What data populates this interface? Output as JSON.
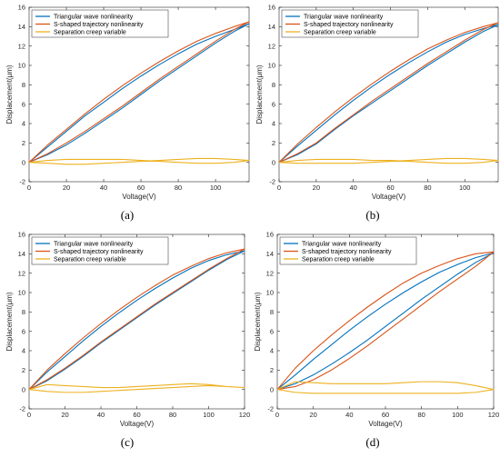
{
  "figure": {
    "panels": [
      "a",
      "b",
      "c",
      "d"
    ],
    "captions": [
      "(a)",
      "(b)",
      "(c)",
      "(d)"
    ]
  },
  "colors": {
    "triangular": "#0072BD",
    "s_shaped": "#D95319",
    "creep": "#EDB120",
    "axis": "#262626"
  },
  "chart_data": [
    {
      "type": "line",
      "caption": "(a)",
      "xlabel": "Voltage(V)",
      "ylabel": "Displacement(μm)",
      "xlim": [
        0,
        118
      ],
      "ylim": [
        -2,
        16
      ],
      "xticks": [
        0,
        20,
        40,
        60,
        80,
        100
      ],
      "yticks": [
        -2,
        0,
        2,
        4,
        6,
        8,
        10,
        12,
        14,
        16
      ],
      "legend_position": "top-left",
      "series": [
        {
          "name": "Triangular wave nonlinearity",
          "color": "#0072BD",
          "x": [
            0,
            10,
            20,
            30,
            40,
            50,
            60,
            70,
            80,
            90,
            100,
            110,
            118,
            110,
            100,
            90,
            80,
            70,
            60,
            50,
            40,
            30,
            20,
            10,
            0
          ],
          "y": [
            0,
            0.8,
            1.8,
            3.0,
            4.3,
            5.6,
            7.0,
            8.4,
            9.7,
            11.0,
            12.3,
            13.5,
            14.3,
            13.7,
            13.0,
            12.2,
            11.2,
            10.1,
            8.9,
            7.6,
            6.2,
            4.8,
            3.2,
            1.6,
            0
          ]
        },
        {
          "name": "S-shaped trajectory nonlinearity",
          "color": "#D95319",
          "x": [
            0,
            10,
            20,
            30,
            40,
            50,
            60,
            70,
            80,
            90,
            100,
            110,
            118,
            110,
            100,
            90,
            80,
            70,
            60,
            50,
            40,
            30,
            20,
            10,
            0
          ],
          "y": [
            0,
            0.9,
            2.0,
            3.2,
            4.5,
            5.8,
            7.2,
            8.6,
            9.9,
            11.2,
            12.5,
            13.7,
            14.5,
            14.0,
            13.3,
            12.5,
            11.5,
            10.4,
            9.2,
            7.9,
            6.5,
            5.0,
            3.4,
            1.8,
            0
          ]
        },
        {
          "name": "Separation creep variable",
          "color": "#EDB120",
          "x": [
            0,
            10,
            20,
            30,
            40,
            50,
            60,
            70,
            80,
            90,
            100,
            110,
            118,
            110,
            100,
            90,
            80,
            70,
            60,
            50,
            40,
            30,
            20,
            10,
            0
          ],
          "y": [
            0,
            -0.1,
            -0.2,
            -0.2,
            -0.1,
            0.0,
            0.1,
            0.2,
            0.3,
            0.4,
            0.4,
            0.3,
            0.2,
            0.0,
            -0.1,
            -0.1,
            0.0,
            0.1,
            0.2,
            0.3,
            0.3,
            0.3,
            0.3,
            0.2,
            0
          ]
        }
      ]
    },
    {
      "type": "line",
      "caption": "(b)",
      "xlabel": "Voltage(V)",
      "ylabel": "Displacement(μm)",
      "xlim": [
        0,
        118
      ],
      "ylim": [
        -2,
        16
      ],
      "xticks": [
        0,
        20,
        40,
        60,
        80,
        100
      ],
      "yticks": [
        -2,
        0,
        2,
        4,
        6,
        8,
        10,
        12,
        14,
        16
      ],
      "legend_position": "top-left",
      "series": [
        {
          "name": "Triangular wave nonlinearity",
          "color": "#0072BD",
          "x": [
            0,
            10,
            20,
            30,
            40,
            50,
            60,
            70,
            80,
            90,
            100,
            110,
            118,
            110,
            100,
            90,
            80,
            70,
            60,
            50,
            40,
            30,
            20,
            10,
            0
          ],
          "y": [
            0,
            0.8,
            1.9,
            3.4,
            4.8,
            6.1,
            7.4,
            8.7,
            10.0,
            11.2,
            12.4,
            13.5,
            14.2,
            13.8,
            13.2,
            12.4,
            11.4,
            10.3,
            9.1,
            7.8,
            6.4,
            4.9,
            3.3,
            1.7,
            0
          ]
        },
        {
          "name": "S-shaped trajectory nonlinearity",
          "color": "#D95319",
          "x": [
            0,
            10,
            20,
            30,
            40,
            50,
            60,
            70,
            80,
            90,
            100,
            110,
            118,
            110,
            100,
            90,
            80,
            70,
            60,
            50,
            40,
            30,
            20,
            10,
            0
          ],
          "y": [
            0,
            0.9,
            2.0,
            3.5,
            4.9,
            6.3,
            7.6,
            8.9,
            10.2,
            11.4,
            12.6,
            13.7,
            14.4,
            14.0,
            13.4,
            12.6,
            11.7,
            10.6,
            9.4,
            8.1,
            6.7,
            5.2,
            3.6,
            1.9,
            0
          ]
        },
        {
          "name": "Separation creep variable",
          "color": "#EDB120",
          "x": [
            0,
            10,
            20,
            30,
            40,
            50,
            60,
            70,
            80,
            90,
            100,
            110,
            118,
            110,
            100,
            90,
            80,
            70,
            60,
            50,
            40,
            30,
            20,
            10,
            0
          ],
          "y": [
            0,
            -0.1,
            -0.1,
            -0.1,
            -0.1,
            0.0,
            0.1,
            0.2,
            0.3,
            0.4,
            0.4,
            0.3,
            0.2,
            0.0,
            -0.1,
            -0.1,
            0.0,
            0.1,
            0.2,
            0.2,
            0.3,
            0.3,
            0.3,
            0.2,
            0
          ]
        }
      ]
    },
    {
      "type": "line",
      "caption": "(c)",
      "xlabel": "Voltage(V)",
      "ylabel": "Displacement(μm)",
      "xlim": [
        0,
        120
      ],
      "ylim": [
        -2,
        16
      ],
      "xticks": [
        0,
        20,
        40,
        60,
        80,
        100,
        120
      ],
      "yticks": [
        -2,
        0,
        2,
        4,
        6,
        8,
        10,
        12,
        14,
        16
      ],
      "legend_position": "top-left",
      "series": [
        {
          "name": "Triangular wave nonlinearity",
          "color": "#0072BD",
          "x": [
            0,
            10,
            20,
            30,
            40,
            50,
            60,
            70,
            80,
            90,
            100,
            110,
            120,
            110,
            100,
            90,
            80,
            70,
            60,
            50,
            40,
            30,
            20,
            10,
            0
          ],
          "y": [
            0,
            0.9,
            2.1,
            3.4,
            4.8,
            6.1,
            7.4,
            8.7,
            9.9,
            11.1,
            12.3,
            13.4,
            14.3,
            13.9,
            13.3,
            12.5,
            11.5,
            10.4,
            9.2,
            7.9,
            6.5,
            5.0,
            3.4,
            1.8,
            0
          ]
        },
        {
          "name": "S-shaped trajectory nonlinearity",
          "color": "#D95319",
          "x": [
            0,
            10,
            20,
            30,
            40,
            50,
            60,
            70,
            80,
            90,
            100,
            110,
            120,
            110,
            100,
            90,
            80,
            70,
            60,
            50,
            40,
            30,
            20,
            10,
            0
          ],
          "y": [
            0,
            1.0,
            2.2,
            3.5,
            4.9,
            6.2,
            7.5,
            8.8,
            10.0,
            11.2,
            12.4,
            13.5,
            14.5,
            14.1,
            13.5,
            12.7,
            11.8,
            10.7,
            9.5,
            8.2,
            6.8,
            5.3,
            3.7,
            2.0,
            0
          ]
        },
        {
          "name": "Separation creep variable",
          "color": "#EDB120",
          "x": [
            0,
            10,
            20,
            30,
            40,
            50,
            60,
            70,
            80,
            90,
            100,
            110,
            120,
            110,
            100,
            90,
            80,
            70,
            60,
            50,
            40,
            30,
            20,
            10,
            0
          ],
          "y": [
            0,
            -0.2,
            -0.3,
            -0.3,
            -0.2,
            -0.1,
            0.0,
            0.1,
            0.2,
            0.3,
            0.4,
            0.3,
            0.2,
            0.3,
            0.5,
            0.6,
            0.5,
            0.4,
            0.3,
            0.2,
            0.2,
            0.3,
            0.4,
            0.5,
            0
          ]
        }
      ]
    },
    {
      "type": "line",
      "caption": "(d)",
      "xlabel": "Voltage(V)",
      "ylabel": "Displacement(μm)",
      "xlim": [
        0,
        120
      ],
      "ylim": [
        -2,
        16
      ],
      "xticks": [
        0,
        20,
        40,
        60,
        80,
        100,
        120
      ],
      "yticks": [
        -2,
        0,
        2,
        4,
        6,
        8,
        10,
        12,
        14,
        16
      ],
      "legend_position": "top-left",
      "series": [
        {
          "name": "Triangular wave nonlinearity",
          "color": "#0072BD",
          "x": [
            0,
            10,
            20,
            30,
            40,
            50,
            60,
            70,
            80,
            90,
            100,
            110,
            120,
            110,
            100,
            90,
            80,
            70,
            60,
            50,
            40,
            30,
            20,
            10,
            0
          ],
          "y": [
            0,
            0.6,
            1.5,
            2.6,
            3.8,
            5.1,
            6.5,
            7.9,
            9.3,
            10.6,
            11.9,
            13.1,
            14.1,
            13.6,
            12.9,
            12.1,
            11.1,
            10.0,
            8.8,
            7.5,
            6.1,
            4.6,
            3.1,
            1.5,
            0
          ]
        },
        {
          "name": "S-shaped trajectory nonlinearity",
          "color": "#D95319",
          "x": [
            0,
            10,
            20,
            30,
            40,
            50,
            60,
            70,
            80,
            90,
            100,
            110,
            120,
            110,
            100,
            90,
            80,
            70,
            60,
            50,
            40,
            30,
            20,
            10,
            0
          ],
          "y": [
            0,
            0.3,
            1.0,
            2.0,
            3.2,
            4.5,
            5.9,
            7.3,
            8.7,
            10.1,
            11.4,
            12.7,
            14.2,
            14.0,
            13.5,
            12.8,
            12.0,
            11.0,
            9.8,
            8.5,
            7.1,
            5.6,
            4.0,
            2.2,
            0
          ]
        },
        {
          "name": "Separation creep variable",
          "color": "#EDB120",
          "x": [
            0,
            10,
            20,
            30,
            40,
            50,
            60,
            70,
            80,
            90,
            100,
            110,
            120,
            110,
            100,
            90,
            80,
            70,
            60,
            50,
            40,
            30,
            20,
            10,
            0
          ],
          "y": [
            0,
            -0.3,
            -0.4,
            -0.4,
            -0.4,
            -0.4,
            -0.4,
            -0.4,
            -0.4,
            -0.4,
            -0.4,
            -0.3,
            0.0,
            0.4,
            0.7,
            0.8,
            0.8,
            0.7,
            0.6,
            0.6,
            0.6,
            0.6,
            0.7,
            0.8,
            0
          ]
        }
      ]
    }
  ]
}
